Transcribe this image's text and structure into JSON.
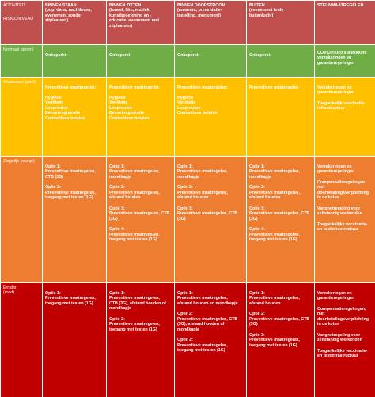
{
  "colors": {
    "header": "#c0504d",
    "normal": "#70ad47",
    "weakened": "#ffc000",
    "worrying": "#ed7d31",
    "severe": "#c00000"
  },
  "header": {
    "col0_line1": "ACTIVITEIT",
    "col0_line2": "RISICONIVEAU",
    "col1": "BINNEN STAAN\n(pop, dans, nachtleven,\nevenement zonder\nzitplaatsen)",
    "col2": "BINNEN ZITTEN\n(toneel, film, muziek,\nkunstbeoefening en -\neducatie, evenement met\nzitplaatsen)",
    "col3": "BINNEN DOORSTROOM\n(museum, presentatie-\ninstelling, monument)",
    "col4": "BUITEN\n(evenement in de\nbuitenlucht)",
    "col5": "STEUNMAATREGELEN"
  },
  "rows": {
    "normal": {
      "label": "Normaal (groen)",
      "c1": "Onbeperkt",
      "c2": "Onbeperkt",
      "c3": "Onbeperkt",
      "c4": "Onbeperkt",
      "c5": "COVID risico’s afdekken:\nverzekeringen en\ngarantieregelingen"
    },
    "weakened": {
      "label": "Waakzaam (geel)",
      "c1": "Preventieve maatregelen:\n\nHygiëne\nVentilatie\nLooproutes\nBezoekregistratie\nContactloos betalen",
      "c2": "Preventieve maatregelen:\n\nHygiëne\nVentilatie\nLooproutes\nBezoekregistratie\nContactloos betalen",
      "c3": "Preventieve maatregelen:\n\nHygiëne\nVentilatie\nLooproutes\nContactloos betalen",
      "c4": "Preventieve maatregelen",
      "c5a": "Verzekeringen en\ngarantieregelingen",
      "c5b": "Toegankelijk vaccinatie-\ninfrastructuur"
    },
    "worrying": {
      "label": "Zorgelijk (oranje)",
      "c1a": "Optie 1:\nPreventieve maatregelen,\nCTB (3G)",
      "c1b": "Optie 2:\nPreventieve maatregelen,\ntoegang met testen (1G)",
      "c2a": "Optie 1:\nPreventieve maatregelen,\nmondkapje",
      "c2b": "Optie 2:\nPreventieve maatregelen,\nafstand houden",
      "c2c": "Optie 3:\nPreventieve maatregelen, CTB\n(3G)",
      "c2d": "Optie 4:\nPreventieve maatregelen,\ntoegang met testen (1G)",
      "c3a": "Optie 1:\nPreventieve maatregelen,\nmondkapje",
      "c3b": "Optie 2:\nPreventieve maatregelen,\nafstand houden",
      "c3c": "Optie 3:\nPreventieve maatregelen, CTB\n(3G)",
      "c4a": "Optie 1:\nPreventieve maatregelen,\nmondkapje",
      "c4b": "Optie 2:\nPreventieve maatregelen,\nafstand houden",
      "c4c": "Optie 3:\nPreventieve maatregelen, CTB\n(3G)",
      "c4d": "Optie 4:\nPreventieve maatregelen,\ntoegang met testen (1G)",
      "c5a": "Verzekeringen en\ngarantieregelingen",
      "c5b": "Compensatieregelingen\nmet\ndoorbetalingsverplichting\nin de keten",
      "c5c": "Vangnetregeling voor\nzelfstandig werkenden",
      "c5d": "Toegankelijke vaccinatie-\nen testinfrastructuur"
    },
    "severe": {
      "label": "Ernstig\n(rood)",
      "c1": "Optie 1:\nPreventieve maatregelen,\ntoegang met testen (1G)",
      "c2a": "Optie 1:\nPreventieve maatregelen,\nCTB (3G), afstand houden of\nmondkapje",
      "c2b": "Optie 2:\nPreventieve maatregelen,\ntoegang met testen (1G)",
      "c3a": "Optie 1:\nPreventieve maatregelen,\nafstand houden en mondkapje",
      "c3b": "Optie 2:\nPreventieve maatregelen, CTB\n(3G), afstand houden of\nmondkapje",
      "c3c": "Optie 3:\nPreventieve maatregelen,\ntoegang met testen (1G)",
      "c4a": "Optie 1:\nPreventieve maatregelen,\nafstand houden",
      "c4b": "Optie 2:\nPreventieve maatregelen, CTB\n(3G)",
      "c4c": "Optie 3:\nPreventieve maatregelen,\ntoegang met testen (1G)",
      "c5a": "Verzekeringen en\ngarantieregelingen",
      "c5b": "Compensatieregelingen,\nmet\ndoorbetalingsverplichting\nin de keten",
      "c5c": "Vangnetregeling voor\nzelfstandig werkenden",
      "c5d": "Toegankelijke vaccinatie-\nen testinfrastructuur"
    }
  }
}
